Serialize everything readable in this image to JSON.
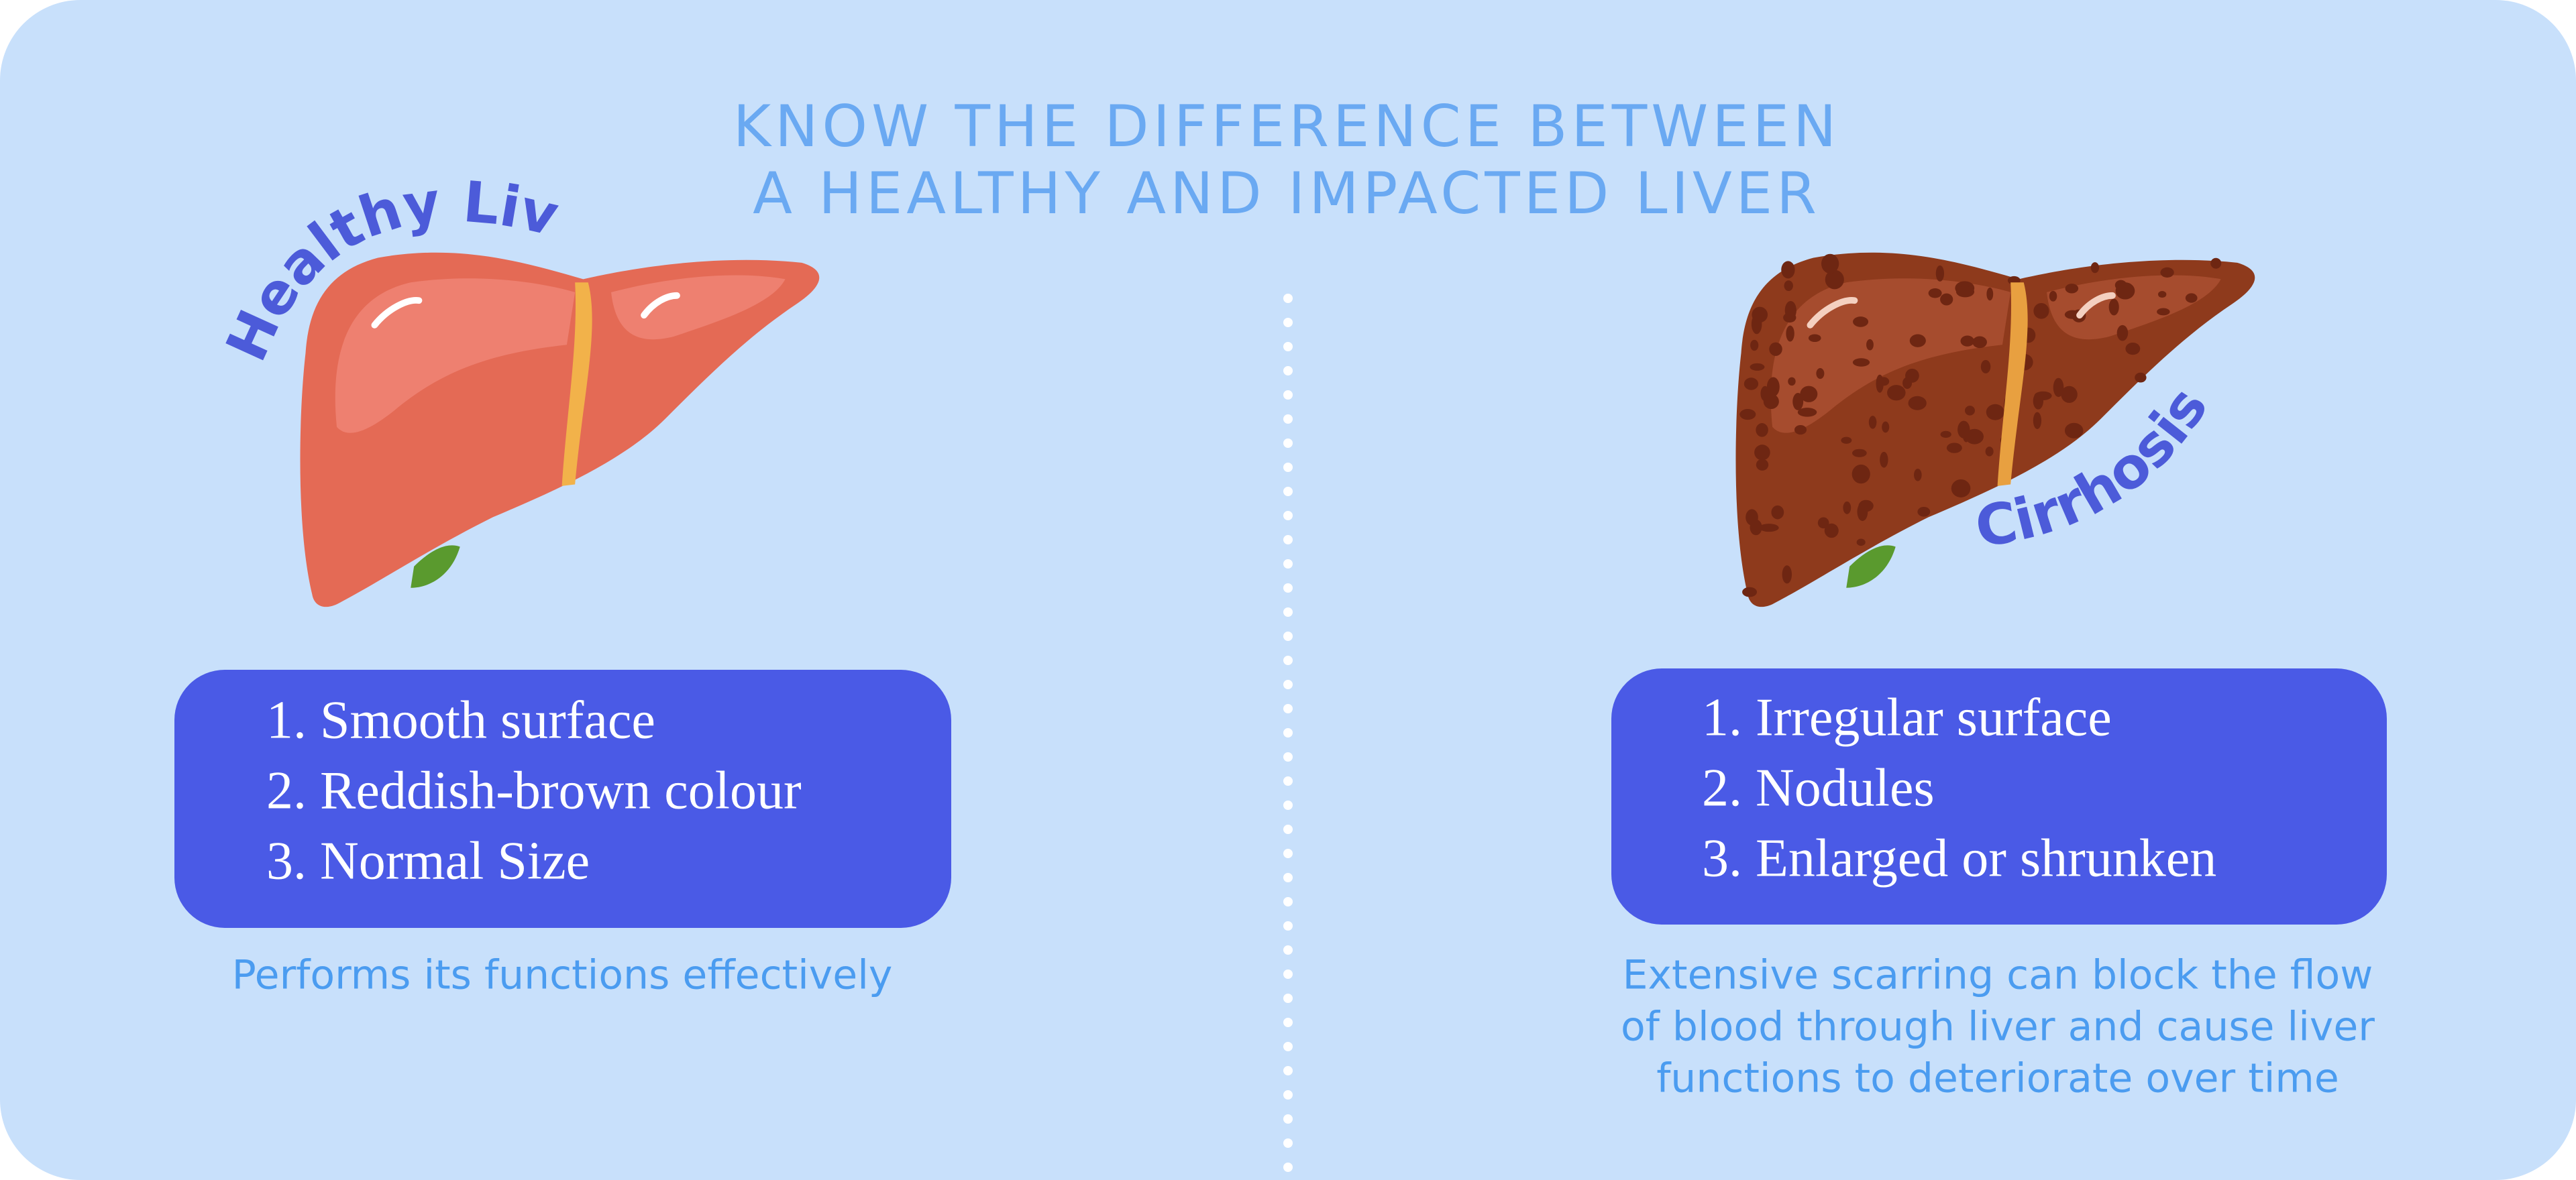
{
  "title": {
    "lines": [
      "KNOW THE DIFFERENCE BETWEEN",
      "A HEALTHY AND IMPACTED LIVER"
    ]
  },
  "panels": [
    {
      "label": "Healthy Liver",
      "items": [
        "1. Smooth surface",
        "2. Reddish-brown colour",
        "3. Normal Size"
      ],
      "caption": [
        "Performs its functions effectively"
      ]
    },
    {
      "label": "Cirrhosis",
      "items": [
        "1. Irregular surface",
        "2. Nodules",
        "3. Enlarged or shrunken"
      ],
      "caption": [
        "Extensive scarring can block the flow",
        "of blood through liver and cause liver",
        "functions to deteriorate over time"
      ]
    }
  ]
}
